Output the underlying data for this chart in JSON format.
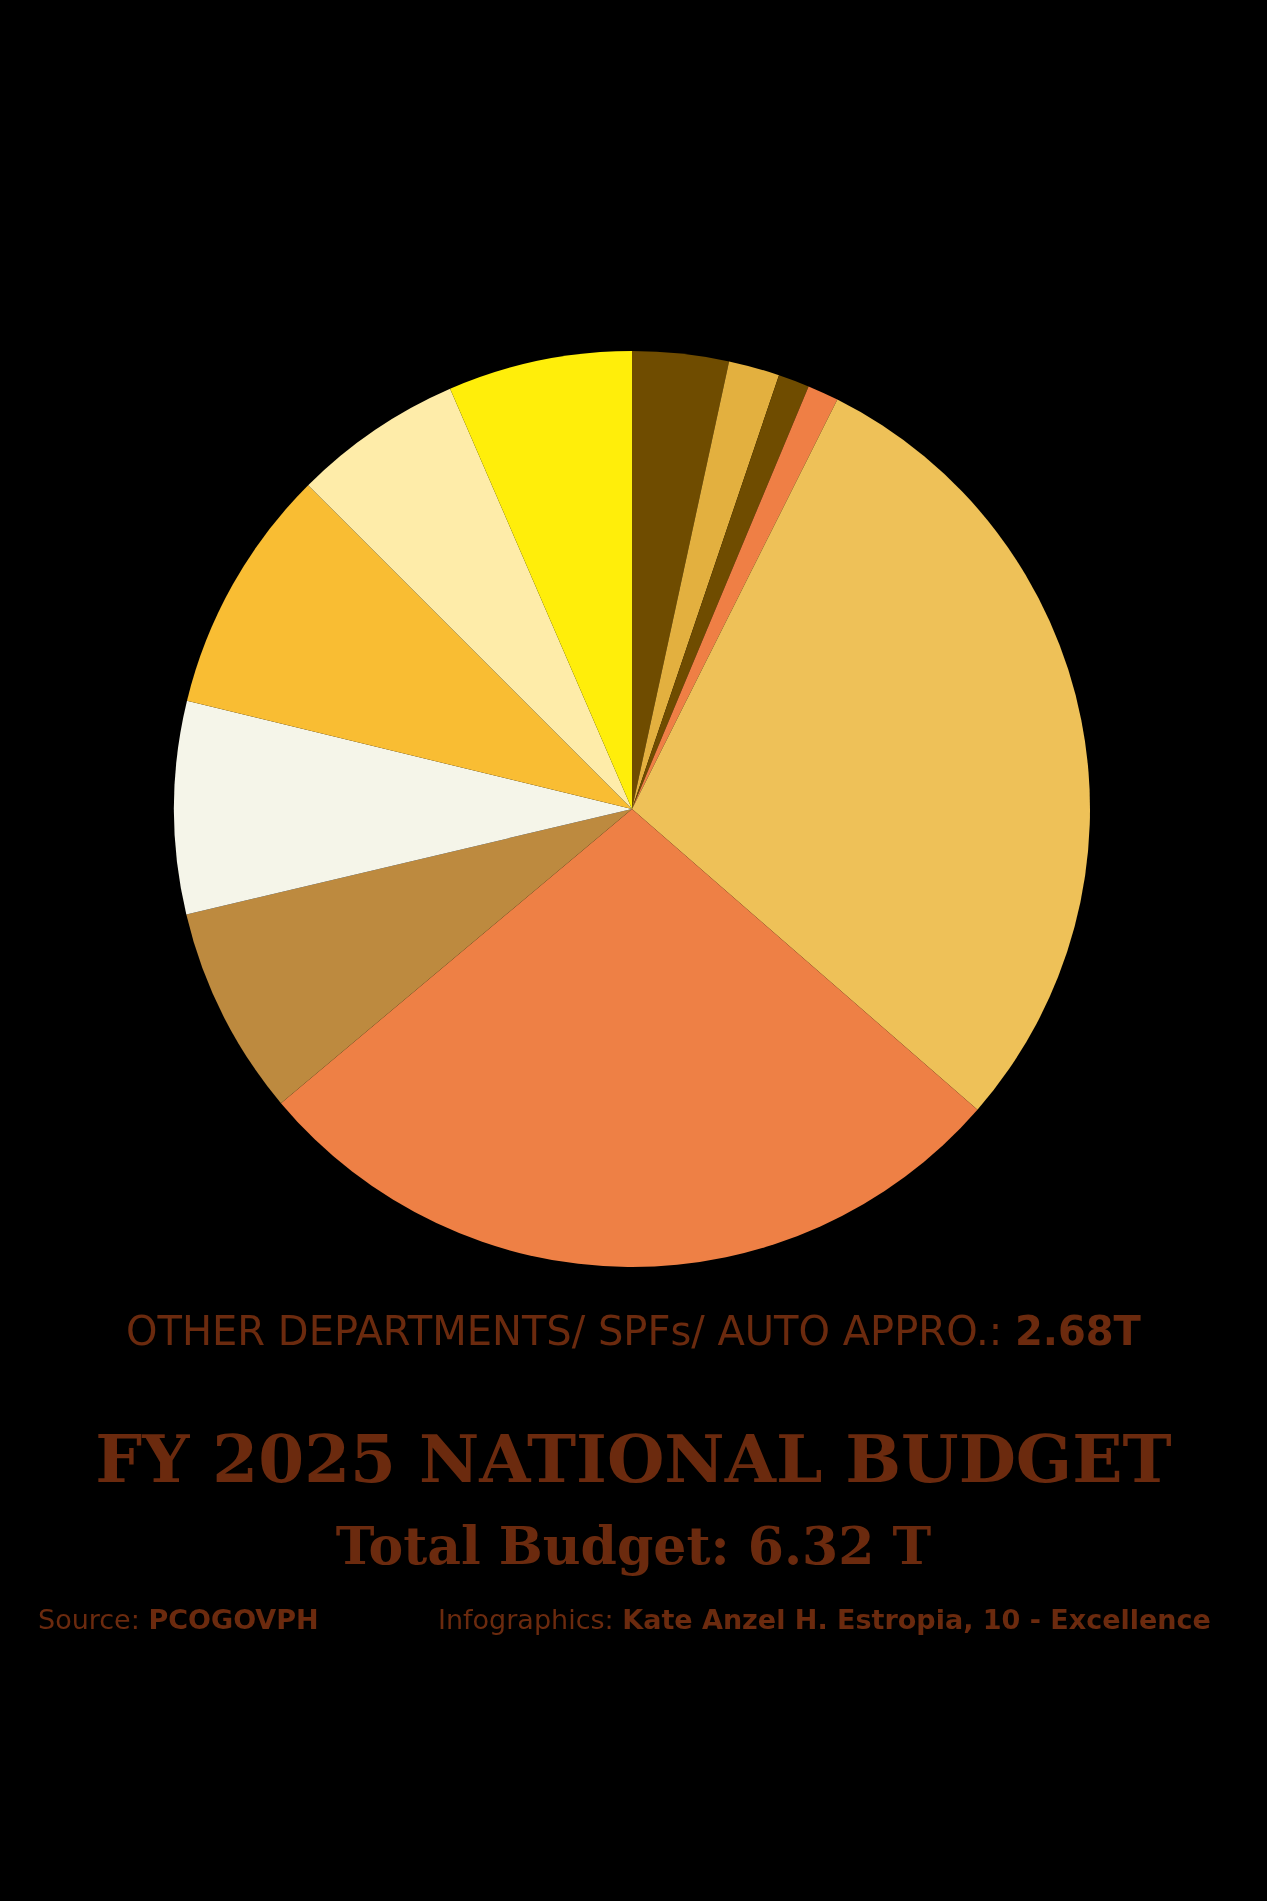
{
  "chart_data": {
    "type": "pie",
    "title": "FY 2025 NATIONAL BUDGET",
    "subtitle": "Total Budget: 6.32 T",
    "categories": [
      null,
      null,
      null,
      null,
      null,
      null,
      null,
      null,
      null,
      null,
      null
    ],
    "values": [
      3.4,
      1.8,
      1.1,
      1.1,
      29.0,
      27.5,
      7.4,
      7.5,
      8.7,
      6.0,
      6.5
    ],
    "colors": [
      "#6f4c00",
      "#e3b03f",
      "#6f4c00",
      "#ef7f45",
      "#eec158",
      "#ee8045",
      "#bd8a3f",
      "#f5f5e9",
      "#f9bd33",
      "#feeca9",
      "#ffee0a"
    ],
    "annotations": [
      "OTHER DEPARTMENTS/ SPFs/ AUTO APPRO.: 2.68T",
      "Source: PCOGOVPH",
      "Infographics: Kate Anzel H. Estropia, 10 - Excellence"
    ]
  }
}
